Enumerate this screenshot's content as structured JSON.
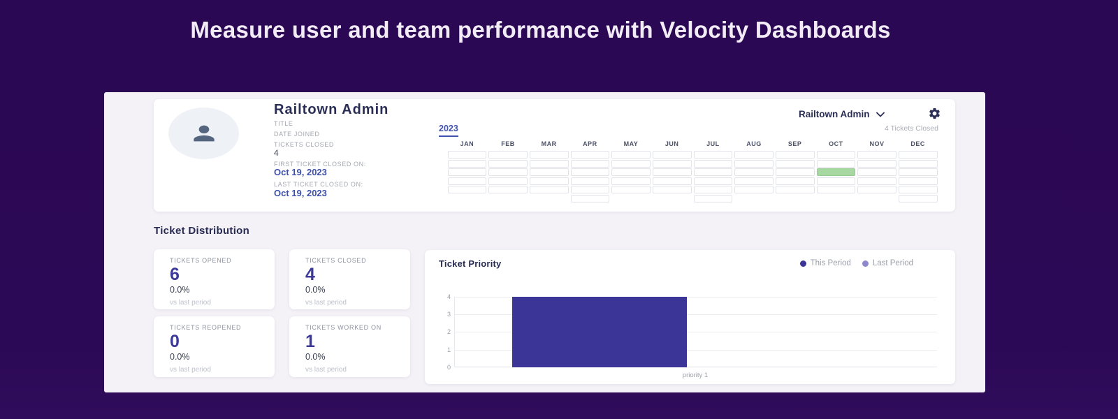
{
  "page": {
    "headline": "Measure user and team performance with Velocity Dashboards"
  },
  "theme": {
    "background_purple": "#2c0956",
    "panel_bg": "#f4f2f7",
    "card_bg": "#ffffff",
    "dark_navy_text": "#272b52",
    "indigo_accent": "#3c3999",
    "date_blue": "#3e50ae",
    "muted_label": "#9ba0ab",
    "highlight_green": "#a7d8a2"
  },
  "profile_card": {
    "name": "Railtown Admin",
    "avatar_icon": "person-icon",
    "fields": [
      {
        "label": "TITLE",
        "value": ""
      },
      {
        "label": "DATE JOINED",
        "value": ""
      },
      {
        "label": "TICKETS CLOSED",
        "value": "4"
      },
      {
        "label": "FIRST TICKET CLOSED ON:",
        "value": "Oct 19, 2023"
      },
      {
        "label": "LAST TICKET CLOSED ON:",
        "value": "Oct 19, 2023"
      }
    ],
    "user_menu_label": "Railtown Admin",
    "settings_icon": "gear-icon",
    "tickets_closed_summary": "4 Tickets Closed",
    "year_tab": "2023",
    "calendar": {
      "months": [
        "JAN",
        "FEB",
        "MAR",
        "APR",
        "MAY",
        "JUN",
        "JUL",
        "AUG",
        "SEP",
        "OCT",
        "NOV",
        "DEC"
      ],
      "weeks_per_month": [
        5,
        5,
        5,
        6,
        5,
        5,
        6,
        5,
        5,
        5,
        5,
        6
      ],
      "highlight": {
        "month": "OCT",
        "month_index": 9,
        "week_row": 3,
        "color": "#a7d8a2"
      }
    }
  },
  "ticket_distribution": {
    "heading": "Ticket Distribution",
    "cards": [
      {
        "label": "TICKETS OPENED",
        "value": "6",
        "percent": "0.0%",
        "caption": "vs last period"
      },
      {
        "label": "TICKETS CLOSED",
        "value": "4",
        "percent": "0.0%",
        "caption": "vs last period"
      },
      {
        "label": "TICKETS REOPENED",
        "value": "0",
        "percent": "0.0%",
        "caption": "vs last period"
      },
      {
        "label": "TICKETS WORKED ON",
        "value": "1",
        "percent": "0.0%",
        "caption": "vs last period"
      }
    ]
  },
  "chart_data": {
    "type": "bar",
    "title": "Ticket Priority",
    "categories": [
      "priority 1"
    ],
    "series": [
      {
        "name": "This Period",
        "values": [
          4
        ],
        "color": "#3b3597"
      },
      {
        "name": "Last Period",
        "values": [
          0
        ],
        "color": "#8d87cb"
      }
    ],
    "ylim": [
      0,
      4
    ],
    "yticks": [
      0,
      1,
      2,
      3,
      4
    ],
    "grid": true,
    "legend_position": "top-right"
  }
}
